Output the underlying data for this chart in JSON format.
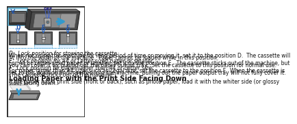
{
  "bg_color": "#ffffff",
  "border_color": "#2a2a2a",
  "title_text": "Loading Paper with the Print Side Facing Down",
  "title_fontsize": 7.0,
  "body_fontsize": 5.5,
  "label_fontsize": 5.5,
  "sections": [
    {
      "label": "D:  Lock position for stowing the cassette",
      "body": "When not using this machine for long period of time or moving it, set it to the position D.  The cassette will\nfit into the width of the machine.  Paper cannot be loaded while in this position."
    },
    {
      "label": "E:  Lock position for A4 or Letter-sized paper or smaller",
      "body": "For A4 or Letter-sized paper or smaller, set it to the position E.  The cassette sticks out of the machine, but\nyou can cover it by pulling out the paper output tray.  Set the cassette to this position for normal use."
    },
    {
      "label": "F:  Lock position for paper larger than A4 or Letter size",
      "body": "For paper larger than A4 size, such as Legal size, set the cassette to the position F.  When the cassette is\nset to this position and inserted into the machine, pulling out the paper output tray will not fully cover it.\n(The cassette sticks out of the machine.)"
    }
  ],
  "section2_body": "If the paper has a print side (front or back), such as photo paper, load it with the whiter side (or glossy\nside) facing down."
}
